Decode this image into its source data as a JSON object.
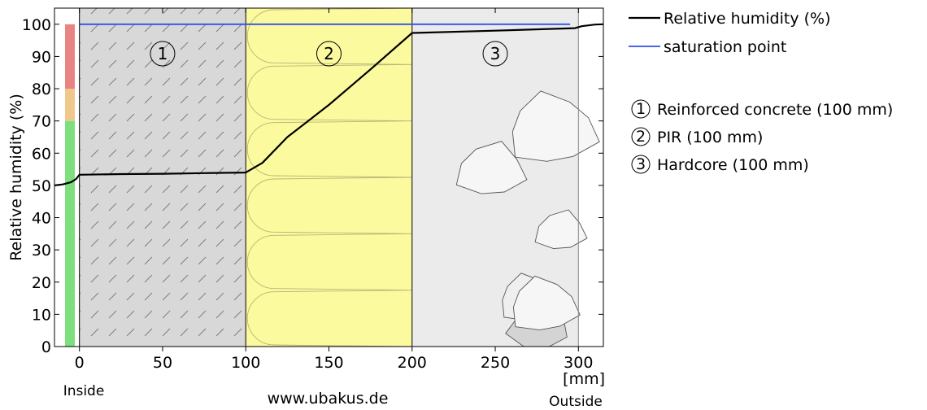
{
  "chart_data": {
    "type": "line",
    "ylabel": "Relative humidity (%)",
    "x_unit_label": "[mm]",
    "inside_label": "Inside",
    "outside_label": "Outside",
    "watermark": "www.ubakus.de",
    "xlim": [
      -15,
      315
    ],
    "ylim": [
      0,
      105
    ],
    "x_ticks": [
      0,
      50,
      100,
      150,
      200,
      250,
      300
    ],
    "y_ticks": [
      0,
      10,
      20,
      30,
      40,
      50,
      60,
      70,
      80,
      90,
      100
    ],
    "grid": false,
    "legend_position": "right",
    "series": [
      {
        "name": "Relative humidity (%)",
        "color": "#000000",
        "x": [
          -15,
          -10,
          -5,
          -2,
          0,
          25,
          50,
          75,
          100,
          110,
          125,
          150,
          175,
          200,
          250,
          298,
          302,
          310,
          315
        ],
        "y": [
          50,
          50.3,
          51,
          52,
          53.3,
          53.5,
          53.6,
          53.8,
          54,
          57,
          65,
          75,
          86,
          97.3,
          98,
          98.8,
          99.4,
          99.9,
          100
        ]
      },
      {
        "name": "saturation point",
        "color": "#3050e8",
        "x": [
          0,
          295
        ],
        "y": [
          100,
          100
        ]
      }
    ],
    "comfort_bar": [
      {
        "from": 0,
        "to": 70,
        "color": "#7ddf7d"
      },
      {
        "from": 70,
        "to": 80,
        "color": "#efc98b"
      },
      {
        "from": 80,
        "to": 100,
        "color": "#e88484"
      }
    ],
    "layers": [
      {
        "number": "1",
        "label": "Reinforced concrete (100 mm)",
        "from": 0,
        "to": 100,
        "color": "#d8d8d8",
        "pattern": "concrete"
      },
      {
        "number": "2",
        "label": "PIR (100 mm)",
        "from": 100,
        "to": 200,
        "color": "#fcfa9e",
        "pattern": "insulation"
      },
      {
        "number": "3",
        "label": "Hardcore (100 mm)",
        "from": 200,
        "to": 300,
        "color": "#ebebeb",
        "pattern": "stones"
      }
    ]
  }
}
